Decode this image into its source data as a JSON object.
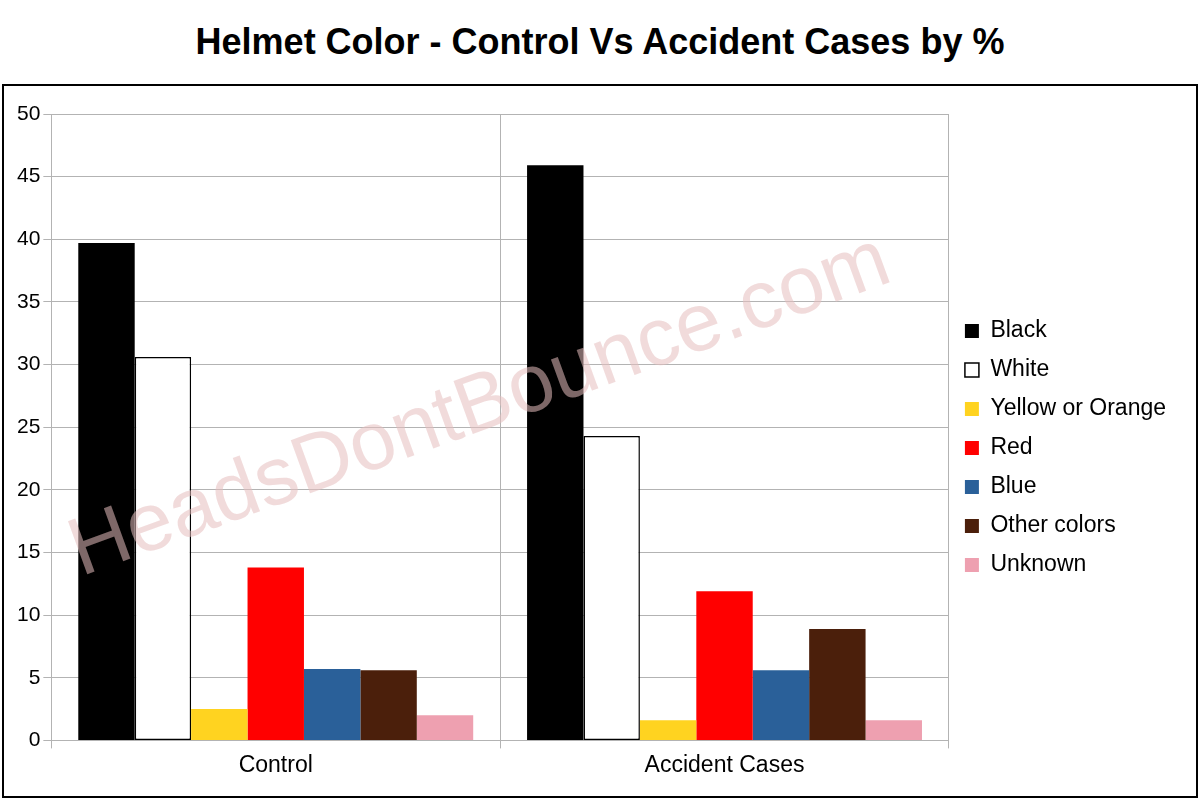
{
  "chart_data": {
    "type": "bar",
    "title": "Helmet Color - Control Vs Accident Cases by %",
    "categories": [
      "Control",
      "Accident Cases"
    ],
    "series": [
      {
        "name": "Black",
        "color": "#000000",
        "values": [
          39.7,
          45.9
        ]
      },
      {
        "name": "White",
        "color": "#ffffff",
        "values": [
          30.6,
          24.3
        ]
      },
      {
        "name": "Yellow or Orange",
        "color": "#ffd320",
        "values": [
          2.5,
          1.6
        ]
      },
      {
        "name": "Red",
        "color": "#ff0000",
        "values": [
          13.8,
          11.9
        ]
      },
      {
        "name": "Blue",
        "color": "#2a6099",
        "values": [
          5.7,
          5.6
        ]
      },
      {
        "name": "Other colors",
        "color": "#4b1f0b",
        "values": [
          5.6,
          8.9
        ]
      },
      {
        "name": "Unknown",
        "color": "#eea0b0",
        "values": [
          2.0,
          1.6
        ]
      }
    ],
    "ylim": [
      0,
      50
    ],
    "yticks": [
      0,
      5,
      10,
      15,
      20,
      25,
      30,
      35,
      40,
      45,
      50
    ],
    "grid": true,
    "legend": "right",
    "annotations": [
      "HeadsDontBounce.com"
    ]
  }
}
